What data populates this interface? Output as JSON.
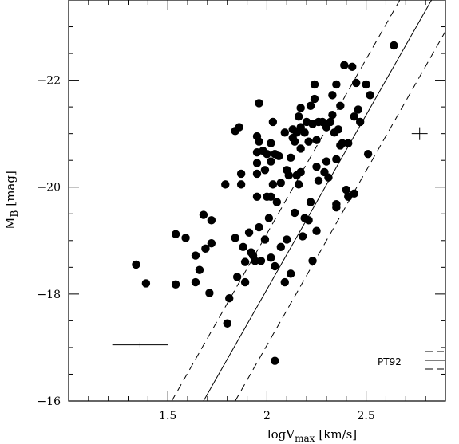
{
  "chart_data": {
    "type": "scatter",
    "xlabel": "logV",
    "xlabel_sub": "max",
    "xlabel_unit": "[km/s]",
    "ylabel": "M",
    "ylabel_sub": "B",
    "ylabel_unit": "[mag]",
    "xlim": [
      1.0,
      2.9
    ],
    "ylim": [
      -16,
      -23.5
    ],
    "y_inverted": true,
    "grid": false,
    "xticks": [
      1.5,
      2.0,
      2.5
    ],
    "xtick_labels": [
      "1.5",
      "2",
      "2.5"
    ],
    "yticks": [
      -16,
      -18,
      -20,
      -22
    ],
    "ytick_labels": [
      "−16",
      "−18",
      "−20",
      "−22"
    ],
    "x_minor_step": 0.1,
    "y_minor_step": 0.5,
    "lines": [
      {
        "style": "solid",
        "x1": 1.68,
        "y1": -16,
        "x2": 2.83,
        "y2": -23.5
      },
      {
        "style": "dashed",
        "x1": 1.52,
        "y1": -16,
        "x2": 2.67,
        "y2": -23.5
      },
      {
        "style": "dashed",
        "x1": 1.84,
        "y1": -16,
        "x2": 2.99,
        "y2": -23.5
      }
    ],
    "error_bars": [
      {
        "x": 1.36,
        "y": -17.05,
        "xerr": 0.14
      },
      {
        "x": 2.77,
        "y": -21.0,
        "xerr": 0.04,
        "yerr": 0.12
      }
    ],
    "key": {
      "label": "PT92",
      "styles": [
        "dashed",
        "solid",
        "dashed"
      ]
    },
    "points": [
      [
        1.34,
        -18.55
      ],
      [
        1.39,
        -18.2
      ],
      [
        1.54,
        -19.12
      ],
      [
        1.54,
        -18.18
      ],
      [
        1.59,
        -19.05
      ],
      [
        1.64,
        -18.72
      ],
      [
        1.64,
        -18.22
      ],
      [
        1.66,
        -18.45
      ],
      [
        1.68,
        -19.48
      ],
      [
        1.69,
        -18.85
      ],
      [
        1.71,
        -18.02
      ],
      [
        1.72,
        -19.38
      ],
      [
        1.72,
        -18.95
      ],
      [
        1.79,
        -20.05
      ],
      [
        1.8,
        -17.45
      ],
      [
        1.81,
        -17.92
      ],
      [
        1.84,
        -21.05
      ],
      [
        1.84,
        -19.05
      ],
      [
        1.85,
        -18.32
      ],
      [
        1.86,
        -21.12
      ],
      [
        1.87,
        -20.25
      ],
      [
        1.87,
        -20.05
      ],
      [
        1.88,
        -18.88
      ],
      [
        1.89,
        -18.6
      ],
      [
        1.89,
        -18.22
      ],
      [
        1.91,
        -19.15
      ],
      [
        1.92,
        -18.78
      ],
      [
        1.93,
        -18.72
      ],
      [
        1.94,
        -18.62
      ],
      [
        1.95,
        -20.95
      ],
      [
        1.95,
        -20.65
      ],
      [
        1.95,
        -20.45
      ],
      [
        1.95,
        -20.25
      ],
      [
        1.95,
        -19.82
      ],
      [
        1.96,
        -21.57
      ],
      [
        1.96,
        -20.85
      ],
      [
        1.96,
        -19.25
      ],
      [
        1.97,
        -18.62
      ],
      [
        1.98,
        -20.68
      ],
      [
        1.99,
        -20.32
      ],
      [
        1.99,
        -19.02
      ],
      [
        2.0,
        -20.62
      ],
      [
        2.0,
        -19.82
      ],
      [
        2.01,
        -19.42
      ],
      [
        2.02,
        -20.82
      ],
      [
        2.02,
        -20.48
      ],
      [
        2.02,
        -19.82
      ],
      [
        2.02,
        -18.68
      ],
      [
        2.03,
        -21.22
      ],
      [
        2.03,
        -20.05
      ],
      [
        2.04,
        -20.62
      ],
      [
        2.04,
        -18.52
      ],
      [
        2.04,
        -16.75
      ],
      [
        2.05,
        -19.72
      ],
      [
        2.06,
        -20.58
      ],
      [
        2.07,
        -18.88
      ],
      [
        2.07,
        -20.08
      ],
      [
        2.09,
        -21.02
      ],
      [
        2.09,
        -18.22
      ],
      [
        2.1,
        -19.02
      ],
      [
        2.1,
        -20.32
      ],
      [
        2.11,
        -20.22
      ],
      [
        2.12,
        -20.55
      ],
      [
        2.12,
        -18.38
      ],
      [
        2.13,
        -20.92
      ],
      [
        2.13,
        -21.08
      ],
      [
        2.14,
        -20.85
      ],
      [
        2.14,
        -19.52
      ],
      [
        2.15,
        -21.02
      ],
      [
        2.15,
        -20.22
      ],
      [
        2.16,
        -20.05
      ],
      [
        2.16,
        -21.32
      ],
      [
        2.17,
        -21.12
      ],
      [
        2.17,
        -20.72
      ],
      [
        2.17,
        -20.28
      ],
      [
        2.17,
        -21.48
      ],
      [
        2.18,
        -19.08
      ],
      [
        2.19,
        -19.42
      ],
      [
        2.19,
        -21.02
      ],
      [
        2.2,
        -21.22
      ],
      [
        2.21,
        -19.38
      ],
      [
        2.21,
        -20.85
      ],
      [
        2.22,
        -19.72
      ],
      [
        2.22,
        -21.52
      ],
      [
        2.23,
        -21.18
      ],
      [
        2.23,
        -18.62
      ],
      [
        2.24,
        -21.92
      ],
      [
        2.24,
        -21.65
      ],
      [
        2.25,
        -20.88
      ],
      [
        2.25,
        -20.38
      ],
      [
        2.25,
        -19.18
      ],
      [
        2.26,
        -20.12
      ],
      [
        2.26,
        -21.22
      ],
      [
        2.28,
        -21.22
      ],
      [
        2.29,
        -20.28
      ],
      [
        2.3,
        -20.48
      ],
      [
        2.3,
        -21.12
      ],
      [
        2.31,
        -20.18
      ],
      [
        2.32,
        -21.22
      ],
      [
        2.33,
        -21.72
      ],
      [
        2.33,
        -21.35
      ],
      [
        2.34,
        -21.02
      ],
      [
        2.35,
        -21.92
      ],
      [
        2.35,
        -20.52
      ],
      [
        2.35,
        -19.62
      ],
      [
        2.35,
        -19.68
      ],
      [
        2.36,
        -21.08
      ],
      [
        2.37,
        -20.78
      ],
      [
        2.37,
        -21.52
      ],
      [
        2.38,
        -20.82
      ],
      [
        2.39,
        -22.28
      ],
      [
        2.4,
        -19.95
      ],
      [
        2.41,
        -19.82
      ],
      [
        2.41,
        -20.82
      ],
      [
        2.43,
        -22.25
      ],
      [
        2.44,
        -21.32
      ],
      [
        2.44,
        -19.88
      ],
      [
        2.45,
        -21.95
      ],
      [
        2.46,
        -21.45
      ],
      [
        2.47,
        -21.22
      ],
      [
        2.5,
        -21.92
      ],
      [
        2.51,
        -20.62
      ],
      [
        2.52,
        -21.72
      ],
      [
        2.64,
        -22.65
      ]
    ]
  }
}
